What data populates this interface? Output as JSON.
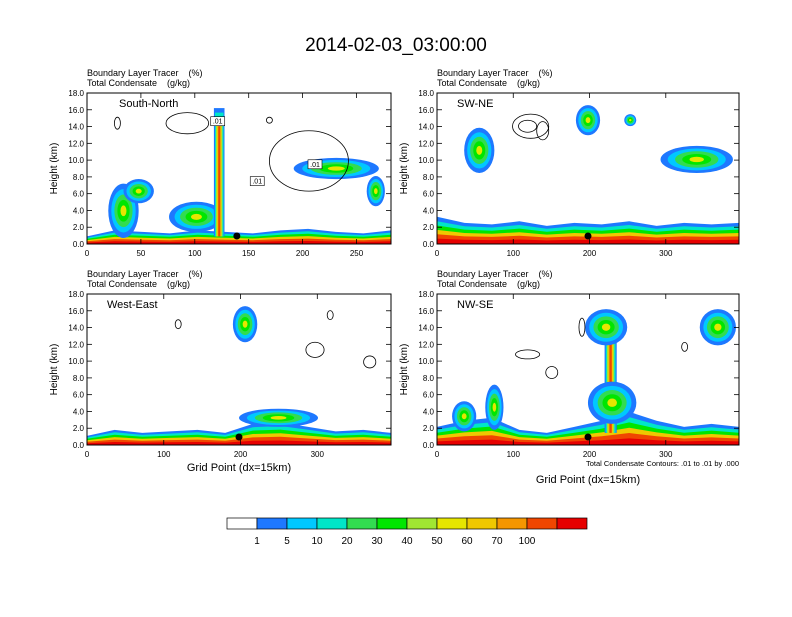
{
  "title": "2014-02-03_03:00:00",
  "colors": {
    "palette": [
      "#ffffff",
      "#1e78ff",
      "#00c8ff",
      "#00e6c8",
      "#32dc50",
      "#00e600",
      "#a0e632",
      "#e6e600",
      "#f0c800",
      "#f59600",
      "#f04600",
      "#e60000"
    ]
  },
  "chart_data": [
    {
      "type": "heatmap",
      "panel": "top-left",
      "name": "South-North",
      "field_labels": [
        "Boundary Layer Tracer    (%)",
        "Total Condensate    (g/kg)"
      ],
      "ylabel": "Height (km)",
      "xlabel": "",
      "xlim": [
        0,
        282
      ],
      "ylim": [
        0,
        18
      ],
      "x_ticks": [
        0,
        50,
        100,
        150,
        200,
        250
      ],
      "y_ticks": [
        "0.0",
        "2.0",
        "4.0",
        "6.0",
        "8.0",
        "10.0",
        "12.0",
        "14.0",
        "16.0",
        "18.0"
      ],
      "contour_labels": [
        ".01",
        ".01",
        ".01"
      ],
      "marker_x": 139
    },
    {
      "type": "heatmap",
      "panel": "top-right",
      "name": "SW-NE",
      "field_labels": [
        "Boundary Layer Tracer    (%)",
        "Total Condensate    (g/kg)"
      ],
      "ylabel": "Height (km)",
      "xlabel": "",
      "xlim": [
        0,
        396
      ],
      "ylim": [
        0,
        18
      ],
      "x_ticks": [
        0,
        100,
        200,
        300
      ],
      "y_ticks": [
        "0.0",
        "2.0",
        "4.0",
        "6.0",
        "8.0",
        "10.0",
        "12.0",
        "14.0",
        "16.0",
        "18.0"
      ],
      "marker_x": 198
    },
    {
      "type": "heatmap",
      "panel": "bottom-left",
      "name": "West-East",
      "field_labels": [
        "Boundary Layer Tracer    (%)",
        "Total Condensate    (g/kg)"
      ],
      "ylabel": "Height (km)",
      "xlabel": "Grid Point (dx=15km)",
      "xlim": [
        0,
        396
      ],
      "ylim": [
        0,
        18
      ],
      "x_ticks": [
        0,
        100,
        200,
        300
      ],
      "y_ticks": [
        "0.0",
        "2.0",
        "4.0",
        "6.0",
        "8.0",
        "10.0",
        "12.0",
        "14.0",
        "16.0",
        "18.0"
      ],
      "marker_x": 198
    },
    {
      "type": "heatmap",
      "panel": "bottom-right",
      "name": "NW-SE",
      "field_labels": [
        "Boundary Layer Tracer    (%)",
        "Total Condensate    (g/kg)"
      ],
      "ylabel": "Height (km)",
      "xlabel": "Grid Point (dx=15km)",
      "note": "Total Condensate Contours: .01 to .01 by .000",
      "xlim": [
        0,
        396
      ],
      "ylim": [
        0,
        18
      ],
      "x_ticks": [
        0,
        100,
        200,
        300
      ],
      "y_ticks": [
        "0.0",
        "2.0",
        "4.0",
        "6.0",
        "8.0",
        "10.0",
        "12.0",
        "14.0",
        "16.0",
        "18.0"
      ],
      "marker_x": 198
    }
  ],
  "colorbar": {
    "labels": [
      "1",
      "5",
      "10",
      "20",
      "30",
      "40",
      "50",
      "60",
      "70",
      "100"
    ],
    "colors": [
      "#ffffff",
      "#1e78ff",
      "#00c8ff",
      "#00e6c8",
      "#32dc50",
      "#00e600",
      "#a0e632",
      "#e6e600",
      "#f0c800",
      "#f59600",
      "#f04600",
      "#e60000"
    ]
  }
}
